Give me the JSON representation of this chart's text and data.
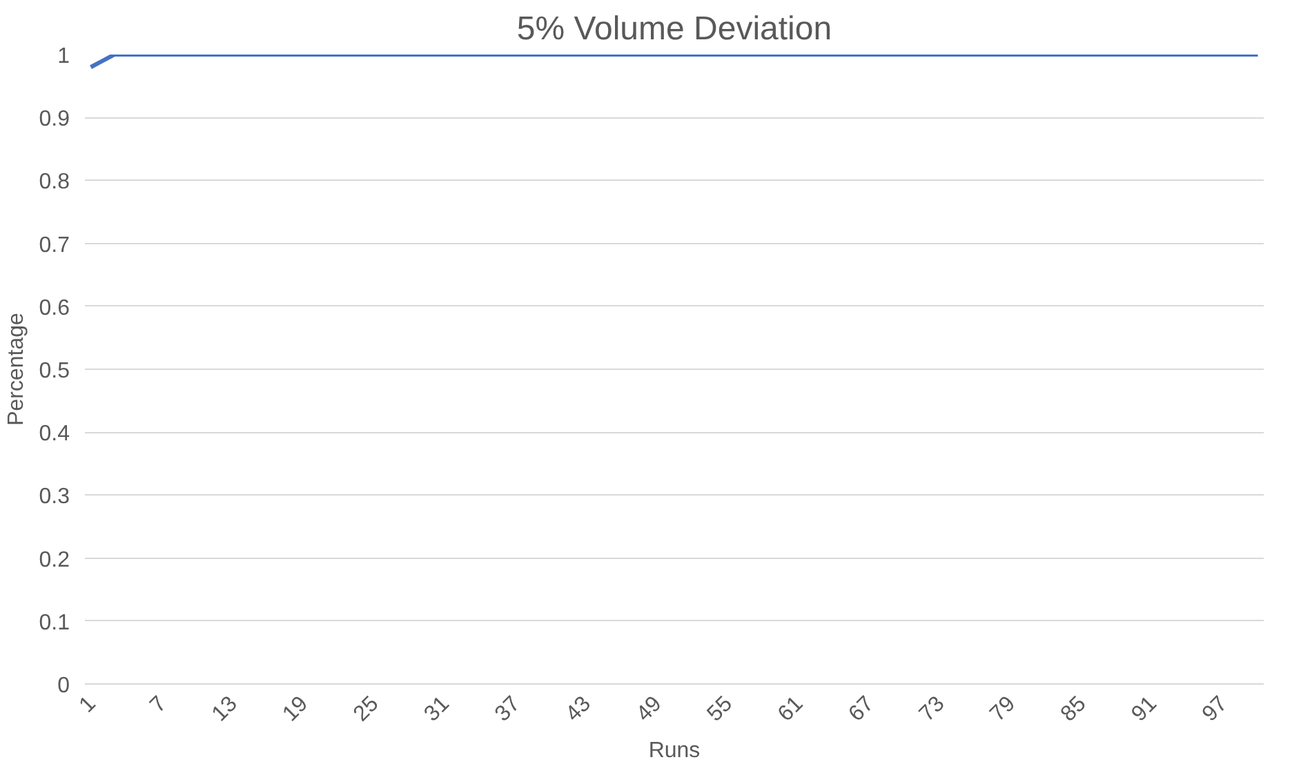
{
  "chart_data": {
    "type": "line",
    "title": "5% Volume Deviation",
    "xlabel": "Runs",
    "ylabel": "Percentage",
    "categories": [
      "1",
      null,
      null,
      null,
      null,
      null,
      "7",
      null,
      null,
      null,
      null,
      null,
      "13",
      null,
      null,
      null,
      null,
      null,
      "19",
      null,
      null,
      null,
      null,
      null,
      "25",
      null,
      null,
      null,
      null,
      null,
      "31",
      null,
      null,
      null,
      null,
      null,
      "37",
      null,
      null,
      null,
      null,
      null,
      "43",
      null,
      null,
      null,
      null,
      null,
      "49",
      null,
      null,
      null,
      null,
      null,
      "55",
      null,
      null,
      null,
      null,
      null,
      "61",
      null,
      null,
      null,
      null,
      null,
      "67",
      null,
      null,
      null,
      null,
      null,
      "73",
      null,
      null,
      null,
      null,
      null,
      "79",
      null,
      null,
      null,
      null,
      null,
      "85",
      null,
      null,
      null,
      null,
      null,
      "91",
      null,
      null,
      null,
      null,
      null,
      "97",
      null,
      null,
      null
    ],
    "series": [
      {
        "color": "#4472c4",
        "values": [
          0.98,
          0.99,
          1,
          1,
          1,
          1,
          1,
          1,
          1,
          1,
          1,
          1,
          1,
          1,
          1,
          1,
          1,
          1,
          1,
          1,
          1,
          1,
          1,
          1,
          1,
          1,
          1,
          1,
          1,
          1,
          1,
          1,
          1,
          1,
          1,
          1,
          1,
          1,
          1,
          1,
          1,
          1,
          1,
          1,
          1,
          1,
          1,
          1,
          1,
          1,
          1,
          1,
          1,
          1,
          1,
          1,
          1,
          1,
          1,
          1,
          1,
          1,
          1,
          1,
          1,
          1,
          1,
          1,
          1,
          1,
          1,
          1,
          1,
          1,
          1,
          1,
          1,
          1,
          1,
          1,
          1,
          1,
          1,
          1,
          1,
          1,
          1,
          1,
          1,
          1,
          1,
          1,
          1,
          1,
          1,
          1,
          1,
          1,
          1,
          1
        ]
      }
    ],
    "ylim": [
      0,
      1
    ],
    "yticks": [
      0,
      0.1,
      0.2,
      0.3,
      0.4,
      0.5,
      0.6,
      0.7,
      0.8,
      0.9,
      1
    ],
    "grid": "y",
    "marker": "none",
    "line_style": "solid"
  }
}
